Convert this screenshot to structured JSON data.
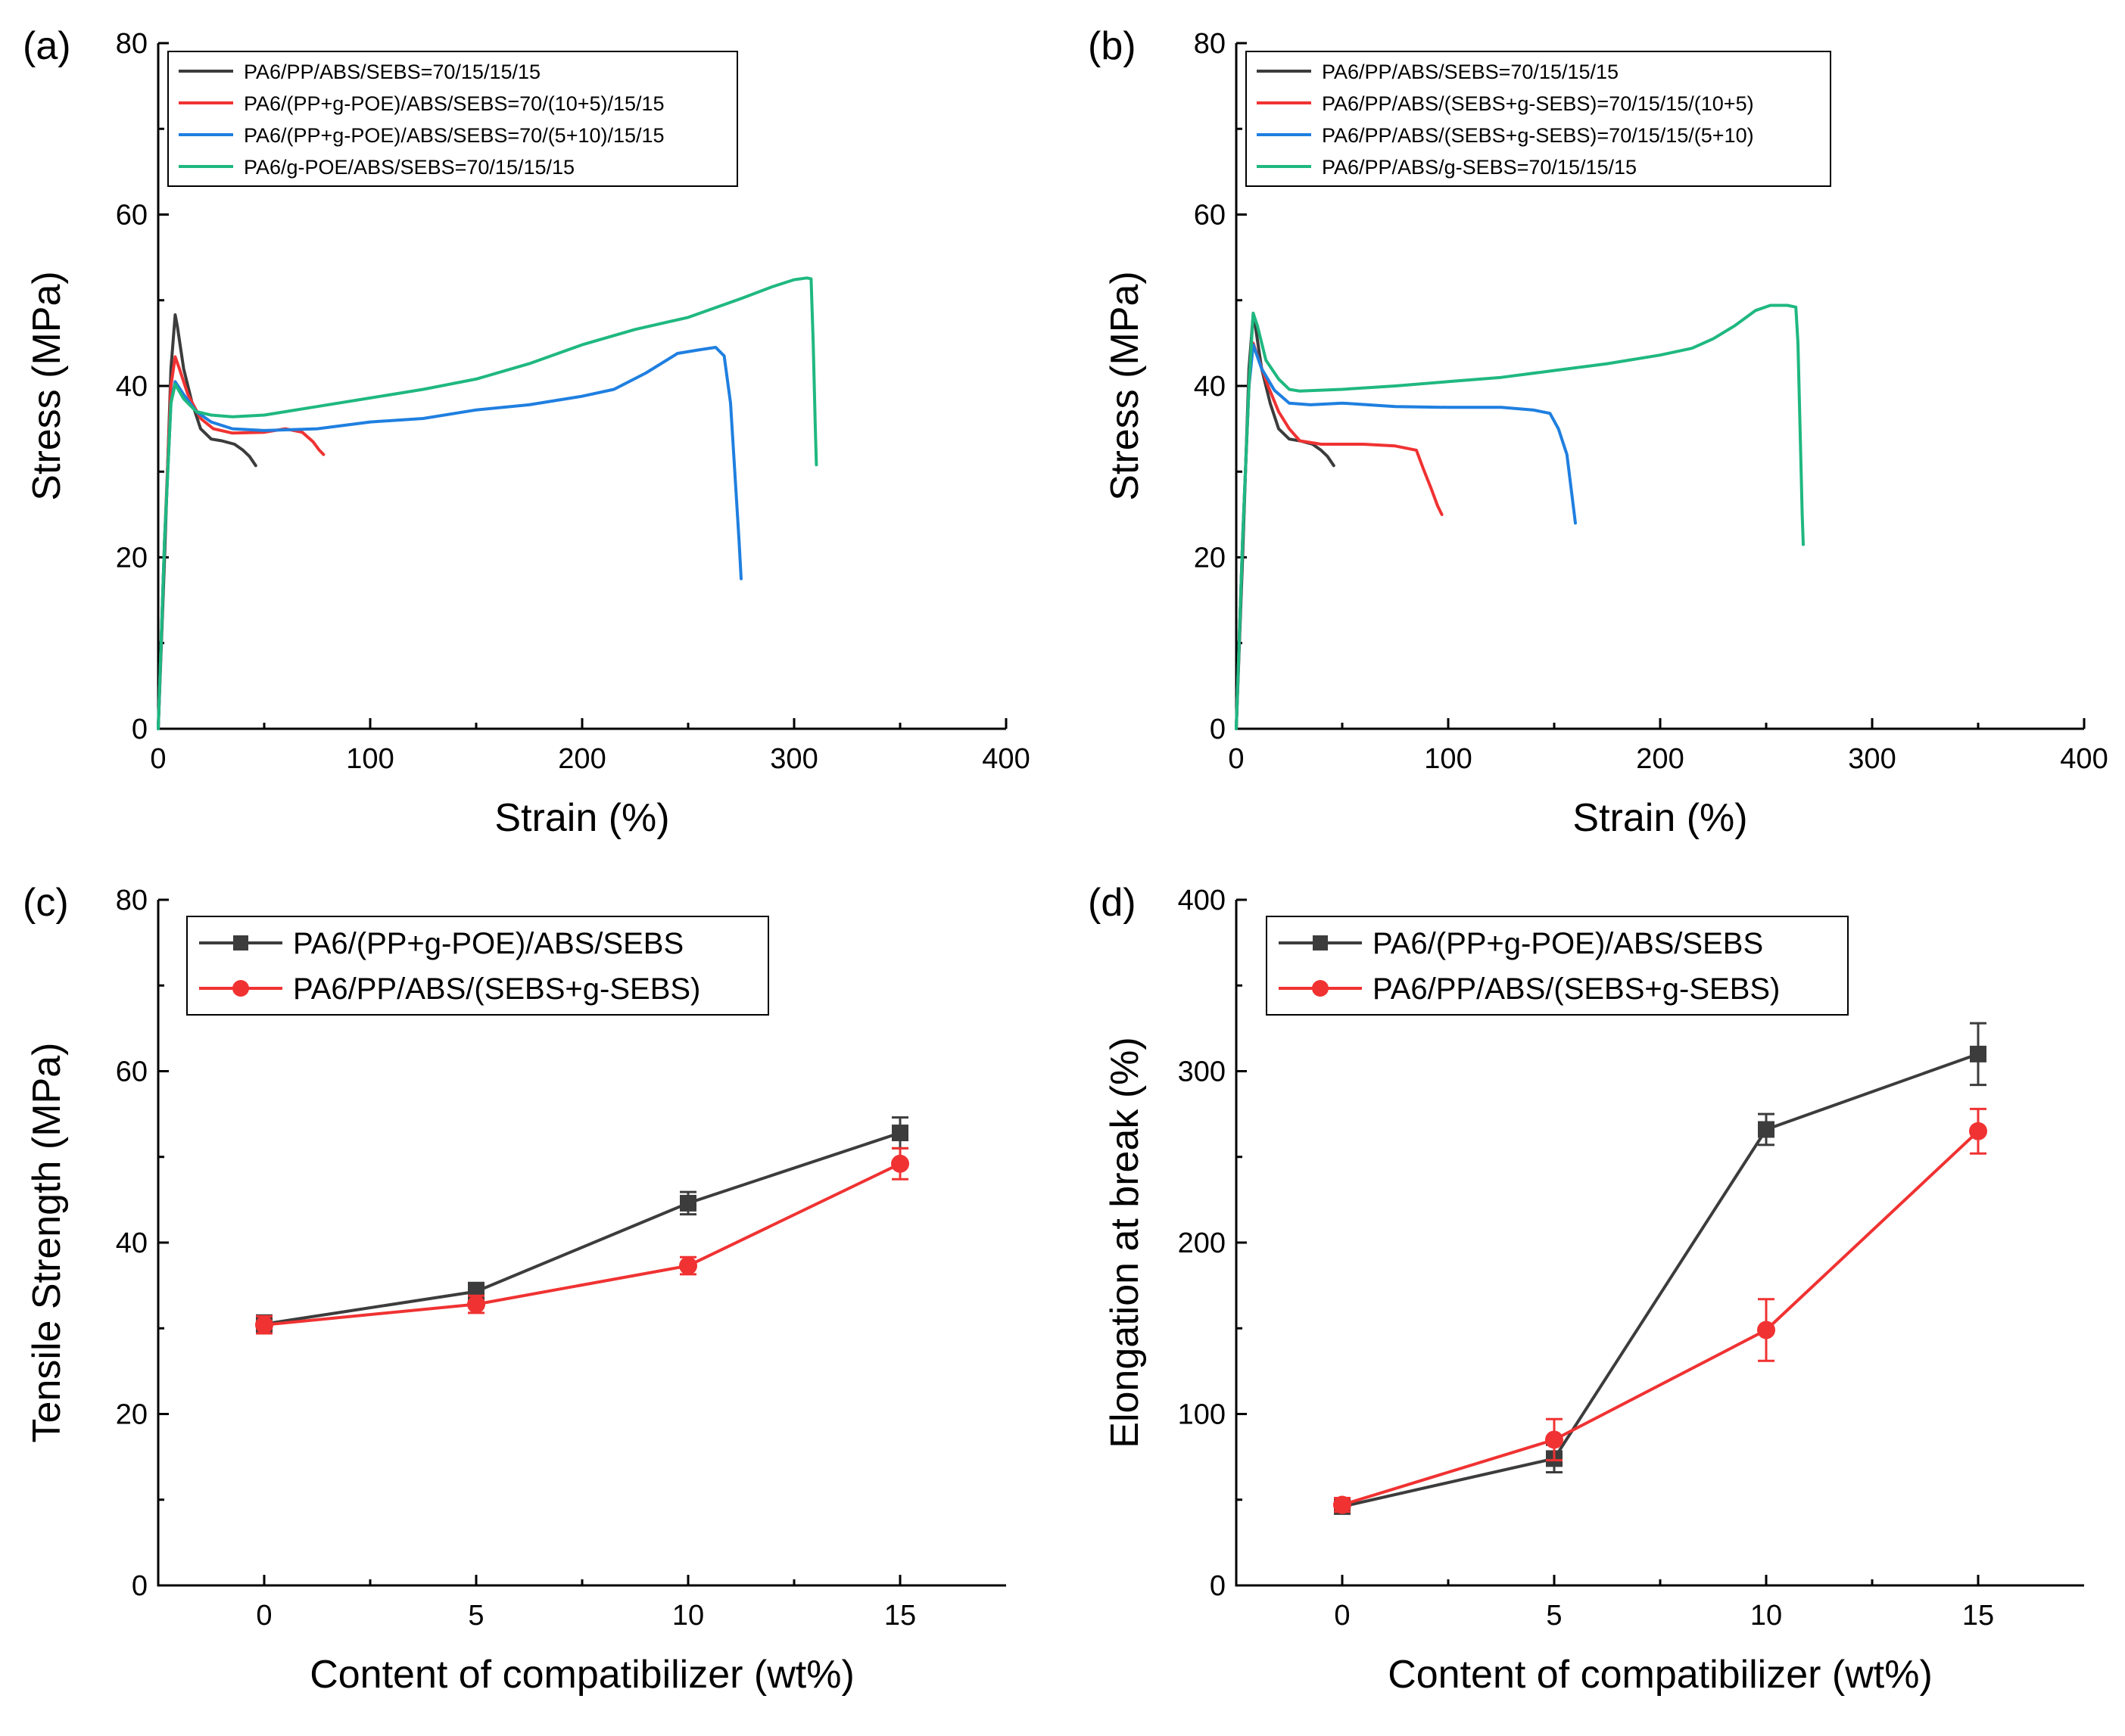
{
  "colors": {
    "black": "#3c3c3c",
    "red": "#f03232",
    "blue": "#1f7fe0",
    "green": "#1fb880",
    "axis": "#000000"
  },
  "chart_data": [
    {
      "panel": "(a)",
      "type": "line",
      "xlabel": "Strain (%)",
      "ylabel": "Stress (MPa)",
      "xlim": [
        0,
        400
      ],
      "ylim": [
        0,
        80
      ],
      "xticks": [
        "0",
        "100",
        "200",
        "300",
        "400"
      ],
      "yticks": [
        "0",
        "20",
        "40",
        "60",
        "80"
      ],
      "legend_position": "top-left",
      "series": [
        {
          "name": "PA6/PP/ABS/SEBS=70/15/15/15",
          "color": "#3c3c3c",
          "points": [
            [
              0,
              0
            ],
            [
              3,
              20
            ],
            [
              6,
              42
            ],
            [
              8,
              48.3
            ],
            [
              9,
              47
            ],
            [
              12,
              42
            ],
            [
              16,
              38
            ],
            [
              20,
              35
            ],
            [
              25,
              33.8
            ],
            [
              30,
              33.6
            ],
            [
              36,
              33.2
            ],
            [
              40,
              32.5
            ],
            [
              43,
              31.8
            ],
            [
              46,
              30.7
            ]
          ]
        },
        {
          "name": "PA6/(PP+g-POE)/ABS/SEBS=70/(10+5)/15/15",
          "color": "#f03232",
          "points": [
            [
              0,
              0
            ],
            [
              3,
              22
            ],
            [
              6,
              40
            ],
            [
              8,
              43.4
            ],
            [
              10,
              42
            ],
            [
              14,
              39
            ],
            [
              20,
              36.2
            ],
            [
              26,
              35
            ],
            [
              35,
              34.5
            ],
            [
              50,
              34.6
            ],
            [
              60,
              35
            ],
            [
              68,
              34.6
            ],
            [
              73,
              33.5
            ],
            [
              76,
              32.5
            ],
            [
              78,
              32
            ]
          ]
        },
        {
          "name": "PA6/(PP+g-POE)/ABS/SEBS=70/(5+10)/15/15",
          "color": "#1f7fe0",
          "points": [
            [
              0,
              0
            ],
            [
              3,
              22
            ],
            [
              6,
              38
            ],
            [
              8,
              40.5
            ],
            [
              12,
              39
            ],
            [
              18,
              37
            ],
            [
              25,
              35.8
            ],
            [
              35,
              35
            ],
            [
              50,
              34.8
            ],
            [
              75,
              35
            ],
            [
              100,
              35.8
            ],
            [
              125,
              36.2
            ],
            [
              150,
              37.2
            ],
            [
              175,
              37.8
            ],
            [
              200,
              38.8
            ],
            [
              215,
              39.6
            ],
            [
              230,
              41.5
            ],
            [
              245,
              43.8
            ],
            [
              255,
              44.2
            ],
            [
              263,
              44.5
            ],
            [
              267,
              43.5
            ],
            [
              270,
              38
            ],
            [
              272,
              30
            ],
            [
              274,
              22
            ],
            [
              275,
              17.5
            ]
          ]
        },
        {
          "name": "PA6/g-POE/ABS/SEBS=70/15/15/15",
          "color": "#1fb880",
          "points": [
            [
              0,
              0
            ],
            [
              3,
              22
            ],
            [
              6,
              38
            ],
            [
              8,
              40.2
            ],
            [
              12,
              38.5
            ],
            [
              18,
              37
            ],
            [
              25,
              36.6
            ],
            [
              35,
              36.4
            ],
            [
              50,
              36.6
            ],
            [
              75,
              37.6
            ],
            [
              100,
              38.6
            ],
            [
              125,
              39.6
            ],
            [
              150,
              40.8
            ],
            [
              175,
              42.6
            ],
            [
              200,
              44.8
            ],
            [
              225,
              46.6
            ],
            [
              250,
              48
            ],
            [
              275,
              50.2
            ],
            [
              290,
              51.6
            ],
            [
              300,
              52.4
            ],
            [
              306,
              52.6
            ],
            [
              308,
              52.5
            ],
            [
              309,
              45
            ],
            [
              310,
              35
            ],
            [
              310.5,
              30.8
            ]
          ]
        }
      ]
    },
    {
      "panel": "(b)",
      "type": "line",
      "xlabel": "Strain (%)",
      "ylabel": "Stress (MPa)",
      "xlim": [
        0,
        400
      ],
      "ylim": [
        0,
        80
      ],
      "xticks": [
        "0",
        "100",
        "200",
        "300",
        "400"
      ],
      "yticks": [
        "0",
        "20",
        "40",
        "60",
        "80"
      ],
      "legend_position": "top-left",
      "series": [
        {
          "name": "PA6/PP/ABS/SEBS=70/15/15/15",
          "color": "#3c3c3c",
          "points": [
            [
              0,
              0
            ],
            [
              3,
              20
            ],
            [
              6,
              42
            ],
            [
              8,
              48.3
            ],
            [
              9,
              47
            ],
            [
              12,
              42
            ],
            [
              16,
              38
            ],
            [
              20,
              35
            ],
            [
              25,
              33.8
            ],
            [
              30,
              33.6
            ],
            [
              36,
              33.2
            ],
            [
              40,
              32.5
            ],
            [
              43,
              31.8
            ],
            [
              46,
              30.7
            ]
          ]
        },
        {
          "name": "PA6/PP/ABS/(SEBS+g-SEBS)=70/15/15/(10+5)",
          "color": "#f03232",
          "points": [
            [
              0,
              0
            ],
            [
              3,
              22
            ],
            [
              6,
              40
            ],
            [
              8,
              45
            ],
            [
              10,
              43.5
            ],
            [
              15,
              40
            ],
            [
              20,
              37
            ],
            [
              25,
              35
            ],
            [
              30,
              33.6
            ],
            [
              40,
              33.2
            ],
            [
              60,
              33.2
            ],
            [
              75,
              33
            ],
            [
              85,
              32.5
            ],
            [
              88,
              30.5
            ],
            [
              92,
              28
            ],
            [
              95,
              26
            ],
            [
              97,
              25
            ]
          ]
        },
        {
          "name": "PA6/PP/ABS/(SEBS+g-SEBS)=70/15/15/(5+10)",
          "color": "#1f7fe0",
          "points": [
            [
              0,
              0
            ],
            [
              3,
              22
            ],
            [
              6,
              40
            ],
            [
              8,
              44.8
            ],
            [
              12,
              42
            ],
            [
              18,
              39.5
            ],
            [
              25,
              38
            ],
            [
              35,
              37.8
            ],
            [
              50,
              38
            ],
            [
              75,
              37.6
            ],
            [
              100,
              37.5
            ],
            [
              125,
              37.5
            ],
            [
              140,
              37.2
            ],
            [
              148,
              36.8
            ],
            [
              152,
              35
            ],
            [
              156,
              32
            ],
            [
              158,
              28
            ],
            [
              160,
              24
            ]
          ]
        },
        {
          "name": "PA6/PP/ABS/g-SEBS=70/15/15/15",
          "color": "#1fb880",
          "points": [
            [
              0,
              0
            ],
            [
              3,
              22
            ],
            [
              6,
              40
            ],
            [
              8,
              48.5
            ],
            [
              10,
              47
            ],
            [
              14,
              43
            ],
            [
              20,
              40.8
            ],
            [
              25,
              39.6
            ],
            [
              30,
              39.4
            ],
            [
              50,
              39.6
            ],
            [
              75,
              40
            ],
            [
              100,
              40.5
            ],
            [
              125,
              41
            ],
            [
              150,
              41.8
            ],
            [
              175,
              42.6
            ],
            [
              200,
              43.6
            ],
            [
              215,
              44.4
            ],
            [
              225,
              45.5
            ],
            [
              235,
              47
            ],
            [
              245,
              48.8
            ],
            [
              252,
              49.4
            ],
            [
              260,
              49.4
            ],
            [
              264,
              49.2
            ],
            [
              265,
              45
            ],
            [
              266,
              35
            ],
            [
              267,
              25
            ],
            [
              267.5,
              21.5
            ]
          ]
        }
      ]
    },
    {
      "panel": "(c)",
      "type": "line",
      "xlabel": "Content of compatibilizer (wt%)",
      "ylabel": "Tensile Strength (MPa)",
      "xlim": [
        -2.5,
        17.5
      ],
      "ylim": [
        0,
        80
      ],
      "xticks": [
        "0",
        "5",
        "10",
        "15"
      ],
      "yticks": [
        "0",
        "20",
        "40",
        "60",
        "80"
      ],
      "legend_position": "top-left",
      "x": [
        0,
        5,
        10,
        15
      ],
      "series": [
        {
          "name": "PA6/(PP+g-POE)/ABS/SEBS",
          "color": "#3c3c3c",
          "marker": "square",
          "values": [
            30.5,
            34.3,
            44.6,
            52.8
          ],
          "errors": [
            1.0,
            1.0,
            1.3,
            1.8
          ]
        },
        {
          "name": "PA6/PP/ABS/(SEBS+g-SEBS)",
          "color": "#f03232",
          "marker": "circle",
          "values": [
            30.4,
            32.8,
            37.3,
            49.2
          ],
          "errors": [
            1.0,
            1.0,
            1.0,
            1.8
          ]
        }
      ]
    },
    {
      "panel": "(d)",
      "type": "line",
      "xlabel": "Content of compatibilizer (wt%)",
      "ylabel": "Elongation at break (%)",
      "xlim": [
        -2.5,
        17.5
      ],
      "ylim": [
        0,
        400
      ],
      "xticks": [
        "0",
        "5",
        "10",
        "15"
      ],
      "yticks": [
        "0",
        "100",
        "200",
        "300",
        "400"
      ],
      "legend_position": "top-left",
      "x": [
        0,
        5,
        10,
        15
      ],
      "series": [
        {
          "name": "PA6/(PP+g-POE)/ABS/SEBS",
          "color": "#3c3c3c",
          "marker": "square",
          "values": [
            46,
            74,
            266,
            310
          ],
          "errors": [
            4,
            8,
            9,
            18
          ]
        },
        {
          "name": "PA6/PP/ABS/(SEBS+g-SEBS)",
          "color": "#f03232",
          "marker": "circle",
          "values": [
            47,
            85,
            149,
            265
          ],
          "errors": [
            4,
            12,
            18,
            13
          ]
        }
      ]
    }
  ]
}
